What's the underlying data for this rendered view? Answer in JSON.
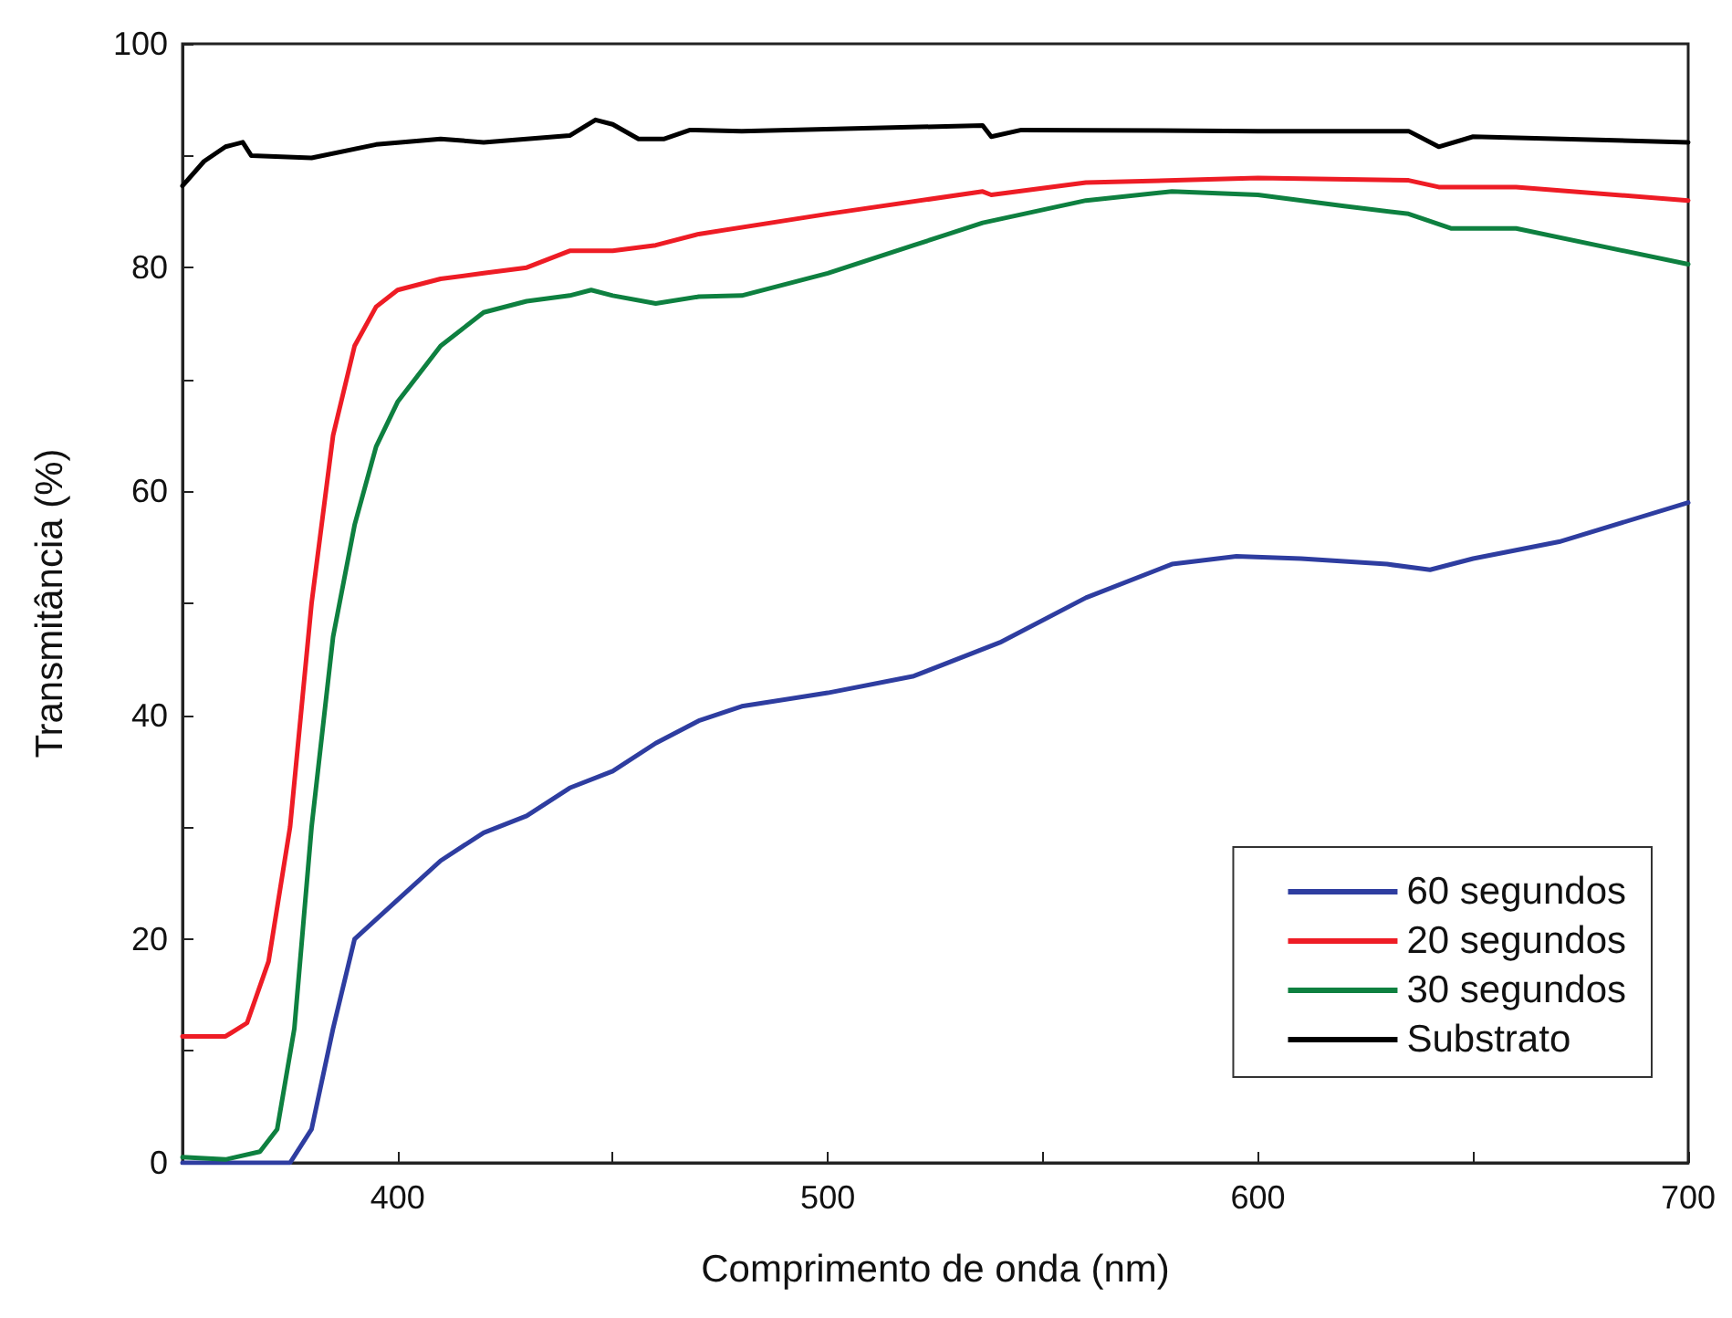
{
  "chart_data": {
    "type": "line",
    "xlabel": "Comprimento de onda (nm)",
    "ylabel": "Transmitância (%)",
    "xlim": [
      350,
      700
    ],
    "xticks": [
      {
        "value": 350,
        "label": null
      },
      400,
      {
        "value": 450,
        "label": null
      },
      500,
      {
        "value": 550,
        "label": null
      },
      600,
      {
        "value": 650,
        "label": null
      },
      700
    ],
    "ylim": [
      0,
      100
    ],
    "yticks": [
      0,
      {
        "value": 10,
        "label": null
      },
      20,
      {
        "value": 30,
        "label": null
      },
      40,
      {
        "value": 50,
        "label": null
      },
      60,
      {
        "value": 70,
        "label": null
      },
      80,
      {
        "value": 90,
        "label": null
      },
      100
    ],
    "grid": false,
    "legend": "bottom right",
    "marker": "none",
    "line_style": "solid",
    "series": [
      {
        "name": "60 segundos",
        "color": "#2e3da0",
        "x": [
          350,
          375,
          380,
          385,
          390,
          400,
          410,
          420,
          430,
          440,
          450,
          460,
          470,
          480,
          500,
          520,
          540,
          560,
          580,
          595,
          610,
          630,
          640,
          650,
          670,
          700
        ],
        "values": [
          0,
          0,
          3,
          12,
          20,
          23.5,
          27,
          29.5,
          31,
          33.5,
          35,
          37.5,
          39.5,
          40.8,
          42,
          43.5,
          46.5,
          50.5,
          53.5,
          54.2,
          54,
          53.5,
          53,
          54,
          55.5,
          59
        ]
      },
      {
        "name": "20 segundos",
        "color": "#ee1c25",
        "x": [
          350,
          360,
          365,
          370,
          375,
          380,
          385,
          390,
          395,
          400,
          410,
          420,
          430,
          440,
          450,
          460,
          470,
          500,
          536,
          538,
          560,
          600,
          635,
          642,
          660,
          700
        ],
        "values": [
          11.3,
          11.3,
          12.5,
          18,
          30,
          50,
          65,
          73,
          76.5,
          78,
          79,
          79.5,
          80,
          81.5,
          81.5,
          82,
          83,
          84.8,
          86.8,
          86.5,
          87.6,
          88,
          87.8,
          87.2,
          87.2,
          86
        ]
      },
      {
        "name": "30 segundos",
        "color": "#0e8040",
        "x": [
          350,
          360,
          368,
          372,
          376,
          380,
          385,
          390,
          395,
          400,
          410,
          420,
          430,
          440,
          445,
          450,
          460,
          470,
          480,
          500,
          520,
          536,
          560,
          580,
          600,
          620,
          635,
          645,
          660,
          700
        ],
        "values": [
          0.5,
          0.3,
          1,
          3,
          12,
          30,
          47,
          57,
          64,
          68,
          73,
          76,
          77,
          77.5,
          78,
          77.5,
          76.8,
          77.4,
          77.5,
          79.5,
          82,
          84,
          86,
          86.8,
          86.5,
          85.5,
          84.8,
          83.5,
          83.5,
          80.3
        ]
      },
      {
        "name": "Substrato",
        "color": "#000000",
        "x": [
          350,
          355,
          360,
          364,
          366,
          380,
          395,
          410,
          420,
          440,
          446,
          450,
          456,
          462,
          468,
          480,
          536,
          538,
          545,
          600,
          635,
          642,
          650,
          700
        ],
        "values": [
          87.3,
          89.5,
          90.8,
          91.2,
          90,
          89.8,
          91,
          91.5,
          91.2,
          91.8,
          93.2,
          92.8,
          91.5,
          91.5,
          92.3,
          92.2,
          92.7,
          91.7,
          92.3,
          92.2,
          92.2,
          90.8,
          91.7,
          91.2
        ]
      }
    ]
  }
}
